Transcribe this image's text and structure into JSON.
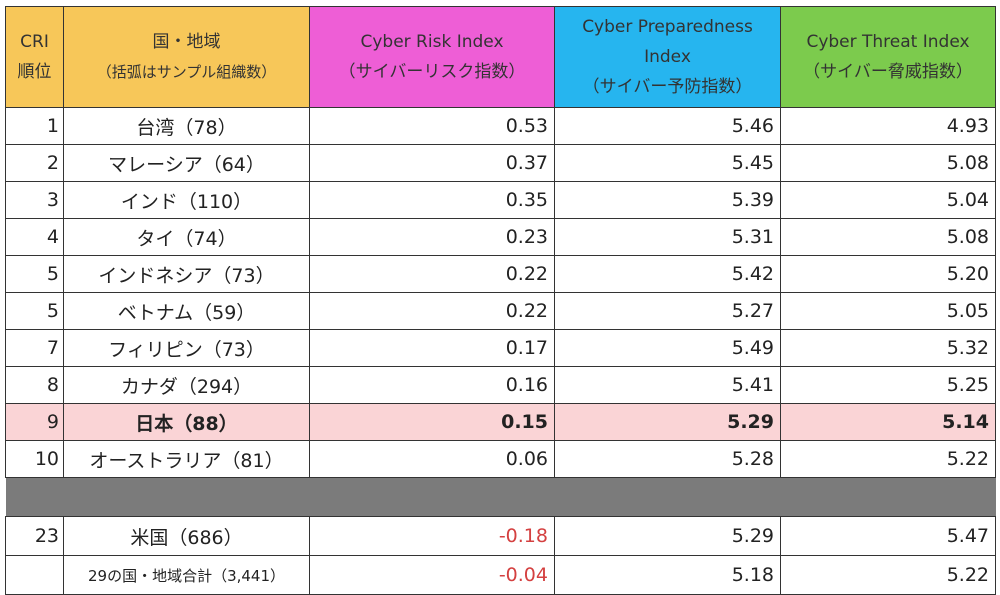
{
  "header": {
    "rank_line1": "CRI",
    "rank_line2": "順位",
    "country_title": "国・地域",
    "country_sub": "（括弧はサンプル組織数）",
    "risk_title": "Cyber Risk Index",
    "risk_sub": "（サイバーリスク指数）",
    "prep_title1": "Cyber Preparedness",
    "prep_title2": "Index",
    "prep_sub": "（サイバー予防指数）",
    "threat_title": "Cyber Threat Index",
    "threat_sub": "（サイバー脅威指数）"
  },
  "rows": [
    {
      "rank": "1",
      "country": "台湾（78）",
      "risk": "0.53",
      "prep": "5.46",
      "threat": "4.93"
    },
    {
      "rank": "2",
      "country": "マレーシア（64）",
      "risk": "0.37",
      "prep": "5.45",
      "threat": "5.08"
    },
    {
      "rank": "3",
      "country": "インド（110）",
      "risk": "0.35",
      "prep": "5.39",
      "threat": "5.04"
    },
    {
      "rank": "4",
      "country": "タイ（74）",
      "risk": "0.23",
      "prep": "5.31",
      "threat": "5.08"
    },
    {
      "rank": "5",
      "country": "インドネシア（73）",
      "risk": "0.22",
      "prep": "5.42",
      "threat": "5.20"
    },
    {
      "rank": "5",
      "country": "ベトナム（59）",
      "risk": "0.22",
      "prep": "5.27",
      "threat": "5.05"
    },
    {
      "rank": "7",
      "country": "フィリピン（73）",
      "risk": "0.17",
      "prep": "5.49",
      "threat": "5.32"
    },
    {
      "rank": "8",
      "country": "カナダ（294）",
      "risk": "0.16",
      "prep": "5.41",
      "threat": "5.25"
    },
    {
      "rank": "9",
      "country": "日本（88）",
      "risk": "0.15",
      "prep": "5.29",
      "threat": "5.14"
    },
    {
      "rank": "10",
      "country": "オーストラリア（81）",
      "risk": "0.06",
      "prep": "5.28",
      "threat": "5.22"
    }
  ],
  "us_row": {
    "rank": "23",
    "country": "米国（686）",
    "risk": "-0.18",
    "prep": "5.29",
    "threat": "5.47"
  },
  "total_row": {
    "rank": "",
    "country": "29の国・地域合計（3,441）",
    "risk": "-0.04",
    "prep": "5.18",
    "threat": "5.22"
  },
  "colors": {
    "rank_header": "#f7c759",
    "risk_header": "#ee5ed6",
    "prep_header": "#26b5ef",
    "threat_header": "#7ccb4d",
    "highlight_row": "#fad4d6",
    "separator": "#7b7b7b",
    "negative": "#d44040"
  }
}
